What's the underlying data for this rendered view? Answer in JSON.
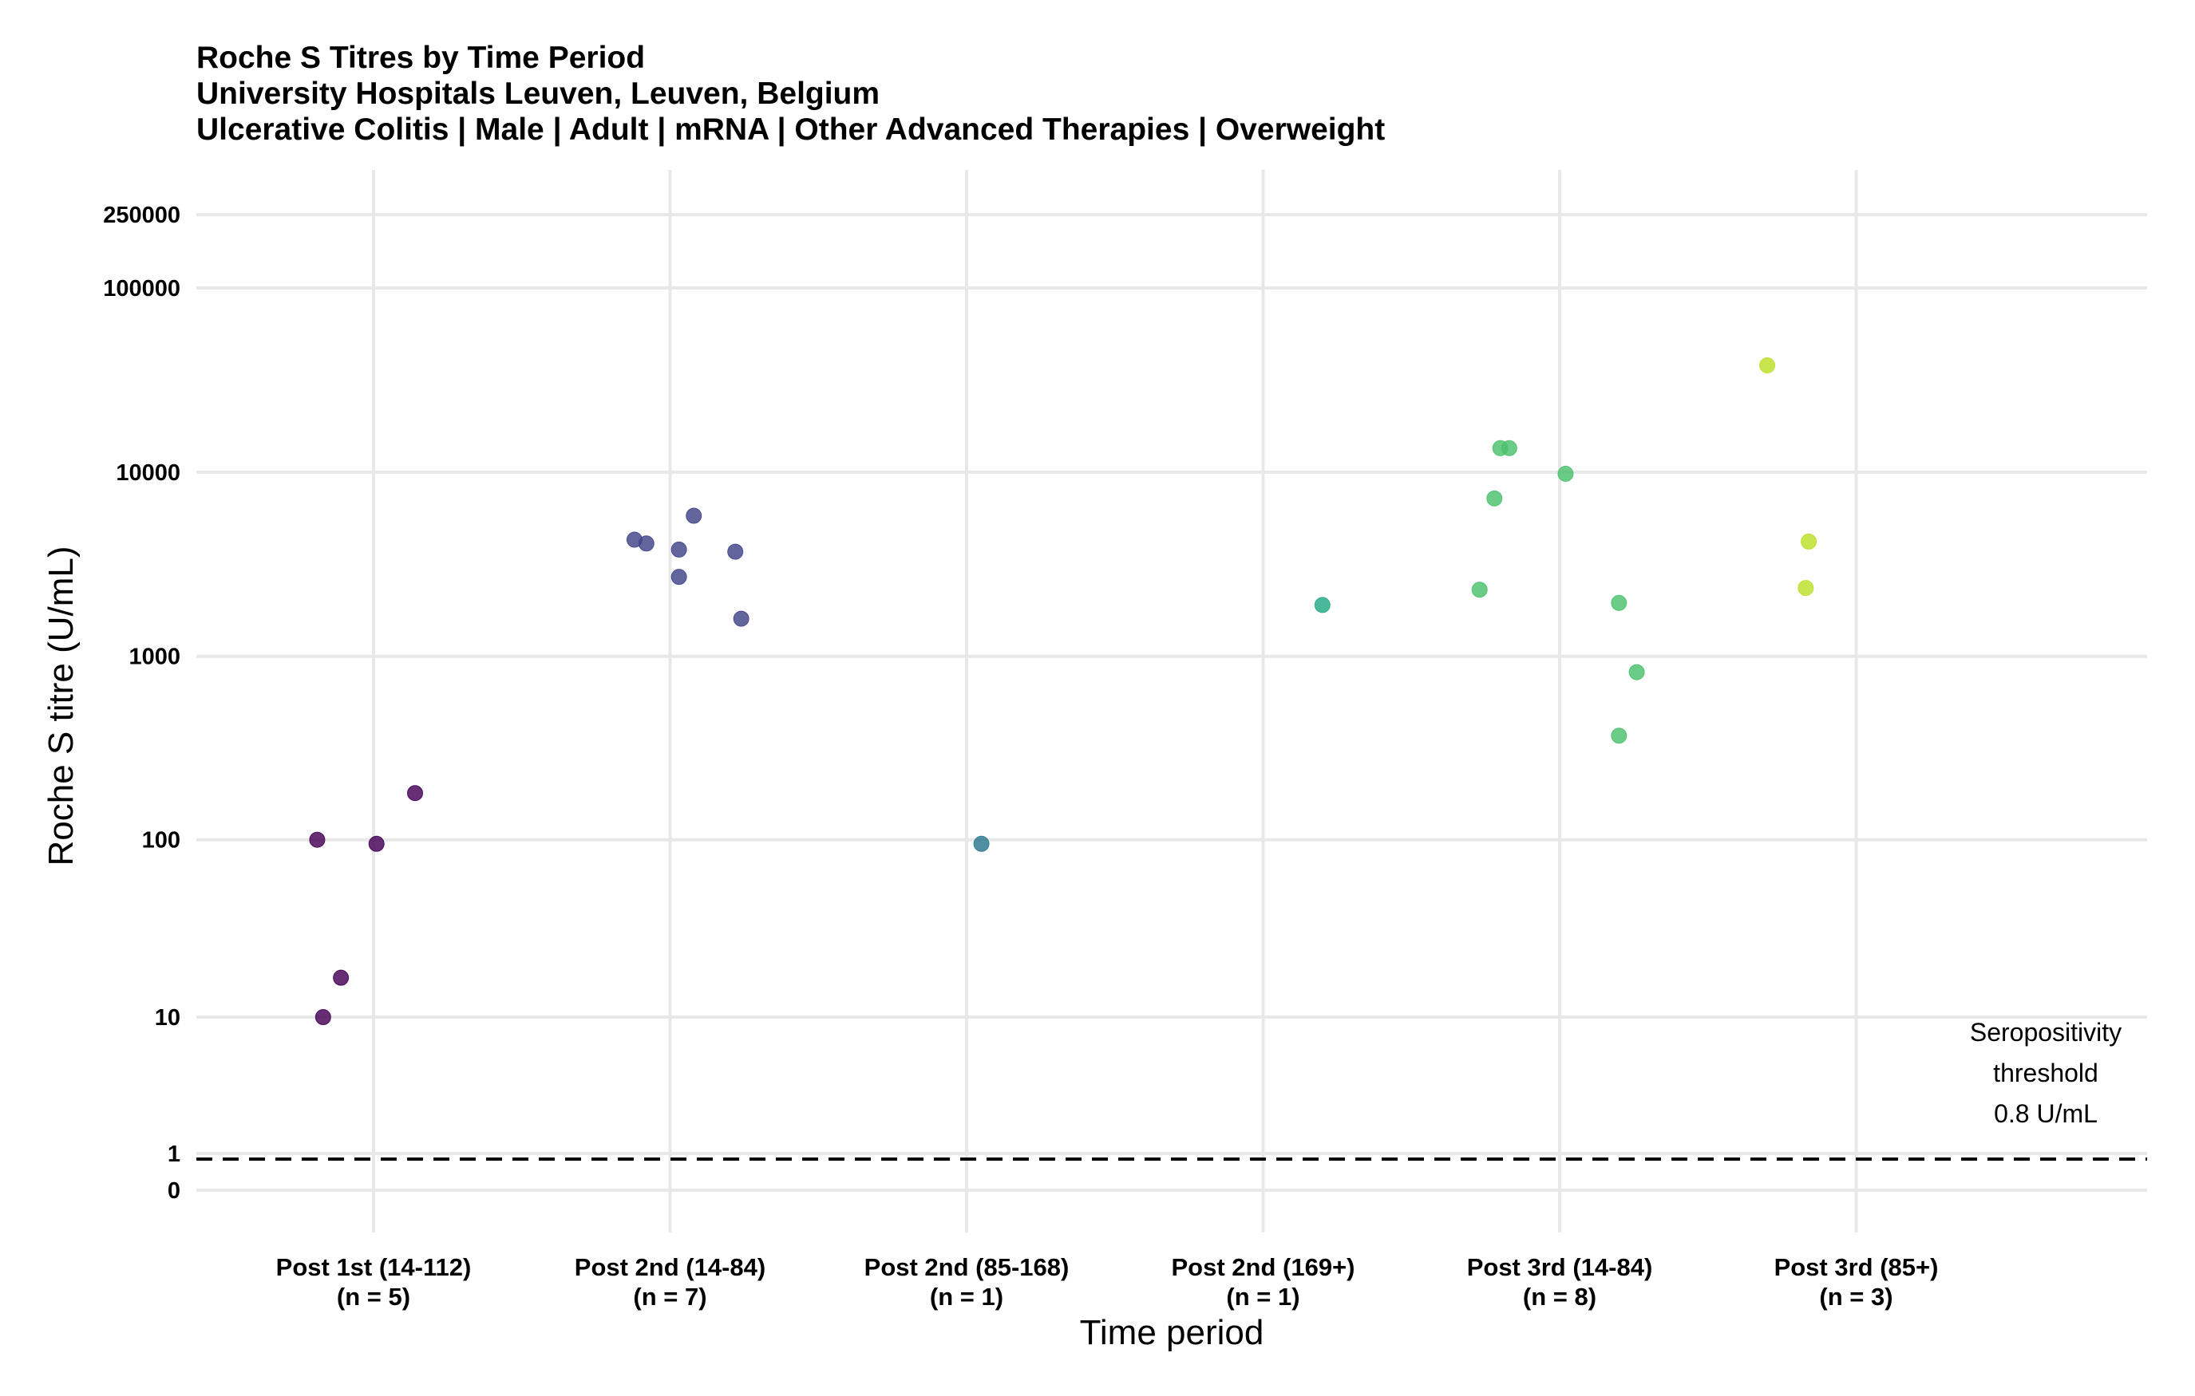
{
  "chart_data": {
    "type": "scatter",
    "title": "Roche S Titres by Time Period",
    "subtitle": "University Hospitals Leuven, Leuven, Belgium",
    "subtitle2": "Ulcerative Colitis | Male | Adult | mRNA | Other Advanced Therapies | Overweight",
    "xlabel": "Time period",
    "ylabel": "Roche S titre (U/mL)",
    "y_scale": "pseudo-log",
    "y_ticks": [
      "0",
      "1",
      "10",
      "100",
      "1000",
      "10000",
      "100000",
      "250000"
    ],
    "grid": true,
    "categories": [
      {
        "label": "Post 1st (14-112)",
        "n_label": "(n = 5)"
      },
      {
        "label": "Post 2nd (14-84)",
        "n_label": "(n = 7)"
      },
      {
        "label": "Post 2nd (85-168)",
        "n_label": "(n = 1)"
      },
      {
        "label": "Post 2nd (169+)",
        "n_label": "(n = 1)"
      },
      {
        "label": "Post 3rd (14-84)",
        "n_label": "(n = 8)"
      },
      {
        "label": "Post 3rd (85+)",
        "n_label": "(n = 3)"
      }
    ],
    "series": [
      {
        "category": "Post 1st (14-112)",
        "color": "#440154",
        "points": [
          {
            "jitter": -0.19,
            "y": 100
          },
          {
            "jitter": 0.01,
            "y": 95
          },
          {
            "jitter": 0.14,
            "y": 180
          },
          {
            "jitter": -0.11,
            "y": 17
          },
          {
            "jitter": -0.17,
            "y": 10
          }
        ]
      },
      {
        "category": "Post 2nd (14-84)",
        "color": "#414487",
        "points": [
          {
            "jitter": -0.12,
            "y": 4300
          },
          {
            "jitter": -0.08,
            "y": 4100
          },
          {
            "jitter": 0.03,
            "y": 3800
          },
          {
            "jitter": 0.08,
            "y": 5800
          },
          {
            "jitter": 0.22,
            "y": 3700
          },
          {
            "jitter": 0.03,
            "y": 2700
          },
          {
            "jitter": 0.24,
            "y": 1600
          }
        ]
      },
      {
        "category": "Post 2nd (85-168)",
        "color": "#2A788E",
        "points": [
          {
            "jitter": 0.05,
            "y": 95
          }
        ]
      },
      {
        "category": "Post 2nd (169+)",
        "color": "#22A884",
        "points": [
          {
            "jitter": 0.2,
            "y": 1900
          }
        ]
      },
      {
        "category": "Post 3rd (14-84)",
        "color": "#4AC16D",
        "points": [
          {
            "jitter": -0.2,
            "y": 13500
          },
          {
            "jitter": -0.17,
            "y": 13500
          },
          {
            "jitter": -0.22,
            "y": 7200
          },
          {
            "jitter": 0.02,
            "y": 9800
          },
          {
            "jitter": -0.27,
            "y": 2300
          },
          {
            "jitter": 0.2,
            "y": 1950
          },
          {
            "jitter": 0.26,
            "y": 820
          },
          {
            "jitter": 0.2,
            "y": 370
          }
        ]
      },
      {
        "category": "Post 3rd (85+)",
        "color": "#BBDF27",
        "points": [
          {
            "jitter": -0.3,
            "y": 38000
          },
          {
            "jitter": -0.16,
            "y": 4200
          },
          {
            "jitter": -0.17,
            "y": 2350
          }
        ]
      }
    ],
    "threshold": {
      "value": 0.8,
      "style": "dashed",
      "label_lines": [
        "Seropositivity",
        "threshold",
        "0.8 U/mL"
      ]
    }
  }
}
